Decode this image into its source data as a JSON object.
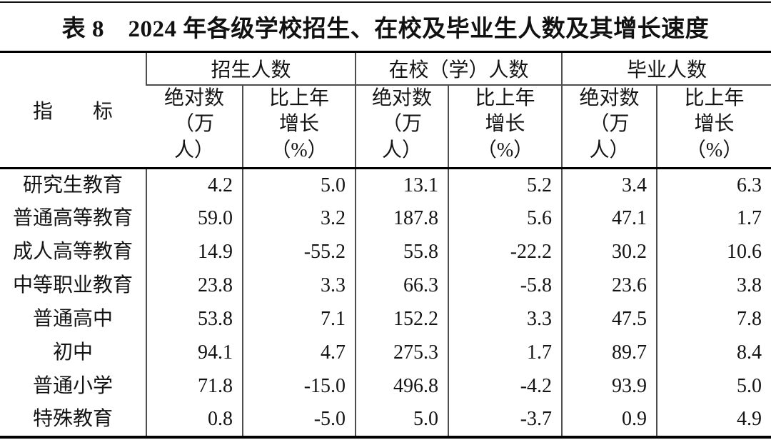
{
  "page": {
    "title": "表 8　2024 年各级学校招生、在校及毕业生人数及其增长速度"
  },
  "table": {
    "indicator_header": "指　　标",
    "groups": [
      {
        "label": "招生人数"
      },
      {
        "label": "在校（学）人数"
      },
      {
        "label": "毕业人数"
      }
    ],
    "sub_headers": {
      "absolute": "绝对数\n（万\n人）",
      "growth": "比上年\n增长\n（%）"
    },
    "rows": [
      {
        "indicator": "研究生教育",
        "values": [
          "4.2",
          "5.0",
          "13.1",
          "5.2",
          "3.4",
          "6.3"
        ]
      },
      {
        "indicator": "普通高等教育",
        "values": [
          "59.0",
          "3.2",
          "187.8",
          "5.6",
          "47.1",
          "1.7"
        ]
      },
      {
        "indicator": "成人高等教育",
        "values": [
          "14.9",
          "-55.2",
          "55.8",
          "-22.2",
          "30.2",
          "10.6"
        ]
      },
      {
        "indicator": "中等职业教育",
        "values": [
          "23.8",
          "3.3",
          "66.3",
          "-5.8",
          "23.6",
          "3.8"
        ]
      },
      {
        "indicator": "普通高中",
        "values": [
          "53.8",
          "7.1",
          "152.2",
          "3.3",
          "47.5",
          "7.8"
        ]
      },
      {
        "indicator": "初中",
        "values": [
          "94.1",
          "4.7",
          "275.3",
          "1.7",
          "89.7",
          "8.4"
        ]
      },
      {
        "indicator": "普通小学",
        "values": [
          "71.8",
          "-15.0",
          "496.8",
          "-4.2",
          "93.9",
          "5.0"
        ]
      },
      {
        "indicator": "特殊教育",
        "values": [
          "0.8",
          "-5.0",
          "5.0",
          "-3.7",
          "0.9",
          "4.9"
        ]
      }
    ],
    "colors": {
      "background": "#ffffff",
      "text": "#141414",
      "heavy_rule": "#000000",
      "grid_line": "#4d4d4d"
    }
  }
}
